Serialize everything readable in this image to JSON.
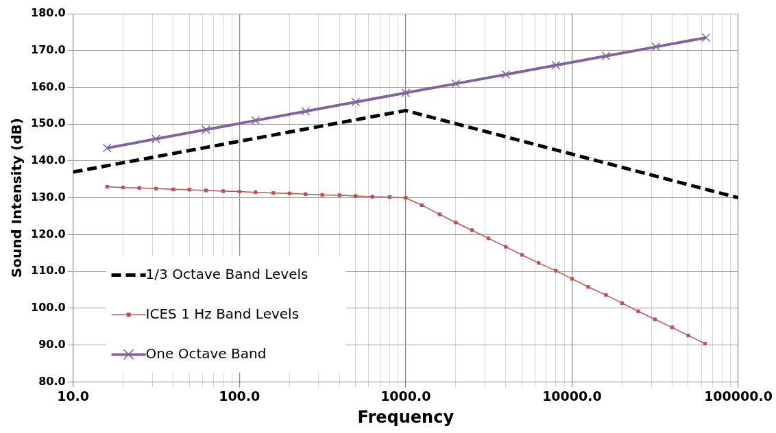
{
  "chart_data": {
    "type": "line",
    "xlabel": "Frequency",
    "ylabel": "Sound Intensity (dB)",
    "log": "x",
    "grid": true,
    "legend": "bottom left",
    "xlim": [
      10,
      100000
    ],
    "xticks": [
      {
        "value": 10,
        "label": "10.0"
      },
      {
        "value": 20,
        "label": null
      },
      {
        "value": 30,
        "label": null
      },
      {
        "value": 40,
        "label": null
      },
      {
        "value": 50,
        "label": null
      },
      {
        "value": 60,
        "label": null
      },
      {
        "value": 70,
        "label": null
      },
      {
        "value": 80,
        "label": null
      },
      {
        "value": 90,
        "label": null
      },
      {
        "value": 100,
        "label": "100.0"
      },
      {
        "value": 200,
        "label": null
      },
      {
        "value": 300,
        "label": null
      },
      {
        "value": 400,
        "label": null
      },
      {
        "value": 500,
        "label": null
      },
      {
        "value": 600,
        "label": null
      },
      {
        "value": 700,
        "label": null
      },
      {
        "value": 800,
        "label": null
      },
      {
        "value": 900,
        "label": null
      },
      {
        "value": 1000,
        "label": "1000.0"
      },
      {
        "value": 2000,
        "label": null
      },
      {
        "value": 3000,
        "label": null
      },
      {
        "value": 4000,
        "label": null
      },
      {
        "value": 5000,
        "label": null
      },
      {
        "value": 6000,
        "label": null
      },
      {
        "value": 7000,
        "label": null
      },
      {
        "value": 8000,
        "label": null
      },
      {
        "value": 9000,
        "label": null
      },
      {
        "value": 10000,
        "label": "10000.0"
      },
      {
        "value": 20000,
        "label": null
      },
      {
        "value": 30000,
        "label": null
      },
      {
        "value": 40000,
        "label": null
      },
      {
        "value": 50000,
        "label": null
      },
      {
        "value": 60000,
        "label": null
      },
      {
        "value": 70000,
        "label": null
      },
      {
        "value": 80000,
        "label": null
      },
      {
        "value": 90000,
        "label": null
      },
      {
        "value": 100000,
        "label": "100000.0"
      }
    ],
    "ylim": [
      80,
      180
    ],
    "yticks": [
      {
        "value": 80,
        "label": "80.0"
      },
      {
        "value": 90,
        "label": "90.0"
      },
      {
        "value": 100,
        "label": "100.0"
      },
      {
        "value": 110,
        "label": "110.0"
      },
      {
        "value": 120,
        "label": "120.0"
      },
      {
        "value": 130,
        "label": "130.0"
      },
      {
        "value": 140,
        "label": "140.0"
      },
      {
        "value": 150,
        "label": "150.0"
      },
      {
        "value": 160,
        "label": "160.0"
      },
      {
        "value": 170,
        "label": "170.0"
      },
      {
        "value": 180,
        "label": "180.0"
      }
    ],
    "series": [
      {
        "name": "1/3 Octave Band Levels",
        "color": "#000000",
        "line_style": "dashed",
        "marker": "none",
        "x": [
          10,
          1000,
          100000
        ],
        "values": [
          137,
          153.7,
          130
        ]
      },
      {
        "name": "ICES 1 Hz Band Levels",
        "color": "#c0504d",
        "line_style": "solid",
        "marker": "square",
        "x": [
          16,
          20,
          25,
          31.5,
          40,
          50,
          63,
          80,
          100,
          125,
          160,
          200,
          250,
          315,
          400,
          500,
          630,
          800,
          1000,
          1250,
          1600,
          2000,
          2500,
          3150,
          4000,
          5000,
          6300,
          8000,
          10000,
          12500,
          16000,
          20000,
          25000,
          31500,
          40000,
          50000,
          63000
        ],
        "values": [
          133.0,
          132.8,
          132.7,
          132.5,
          132.3,
          132.2,
          132.0,
          131.8,
          131.7,
          131.5,
          131.3,
          131.2,
          131.0,
          130.8,
          130.7,
          130.5,
          130.3,
          130.2,
          130.0,
          128.0,
          125.5,
          123.3,
          121.2,
          119.0,
          116.7,
          114.5,
          112.3,
          110.2,
          108.0,
          105.8,
          103.6,
          101.4,
          99.2,
          97.0,
          94.8,
          92.6,
          90.4
        ]
      },
      {
        "name": "One Octave Band",
        "color": "#8064a2",
        "line_style": "solid",
        "marker": "cross",
        "x": [
          16,
          31.5,
          63,
          125,
          250,
          500,
          1000,
          2000,
          4000,
          8000,
          16000,
          32000,
          64000
        ],
        "values": [
          143.5,
          146,
          148.5,
          151,
          153.5,
          156,
          158.5,
          161,
          163.5,
          166,
          168.5,
          171,
          173.5
        ]
      }
    ]
  }
}
